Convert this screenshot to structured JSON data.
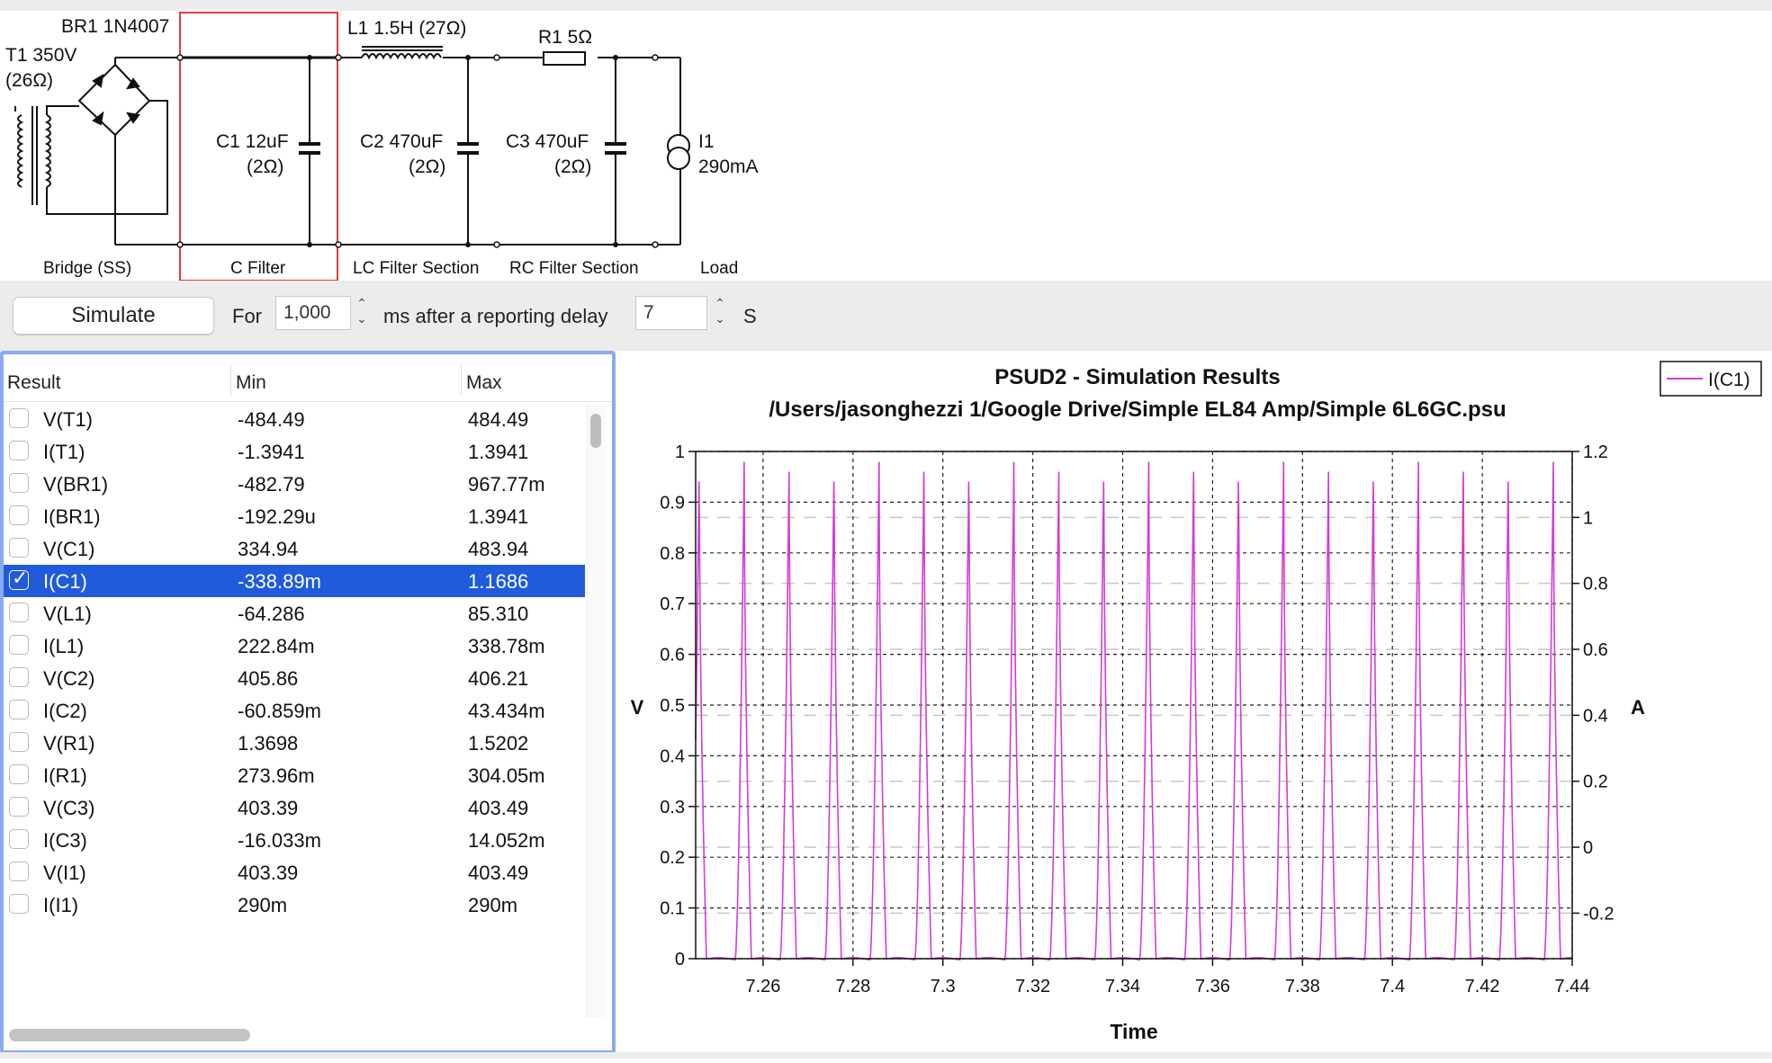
{
  "schematic": {
    "t1_label": "T1 350V",
    "t1_res": "(26Ω)",
    "br1_label": "BR1 1N4007",
    "l1_label": "L1 1.5H (27Ω)",
    "r1_label": "R1 5Ω",
    "c1_label": "C1 12uF",
    "c1_res": "(2Ω)",
    "c2_label": "C2 470uF",
    "c2_res": "(2Ω)",
    "c3_label": "C3 470uF",
    "c3_res": "(2Ω)",
    "i1_label": "I1",
    "i1_value": "290mA",
    "sections": [
      "Bridge (SS)",
      "C Filter",
      "LC Filter Section",
      "RC Filter Section",
      "Load"
    ]
  },
  "toolbar": {
    "simulate_label": "Simulate",
    "for_label": "For",
    "duration_value": "1,000",
    "ms_label": "ms after a reporting delay",
    "delay_value": "7",
    "s_label": "S"
  },
  "results": {
    "headers": [
      "Result",
      "Min",
      "Max"
    ],
    "rows": [
      {
        "name": "V(T1)",
        "min": "-484.49",
        "max": "484.49",
        "selected": false
      },
      {
        "name": "I(T1)",
        "min": "-1.3941",
        "max": "1.3941",
        "selected": false
      },
      {
        "name": "V(BR1)",
        "min": "-482.79",
        "max": "967.77m",
        "selected": false
      },
      {
        "name": "I(BR1)",
        "min": "-192.29u",
        "max": "1.3941",
        "selected": false
      },
      {
        "name": "V(C1)",
        "min": "334.94",
        "max": "483.94",
        "selected": false
      },
      {
        "name": "I(C1)",
        "min": "-338.89m",
        "max": "1.1686",
        "selected": true
      },
      {
        "name": "V(L1)",
        "min": "-64.286",
        "max": "85.310",
        "selected": false
      },
      {
        "name": "I(L1)",
        "min": "222.84m",
        "max": "338.78m",
        "selected": false
      },
      {
        "name": "V(C2)",
        "min": "405.86",
        "max": "406.21",
        "selected": false
      },
      {
        "name": "I(C2)",
        "min": "-60.859m",
        "max": "43.434m",
        "selected": false
      },
      {
        "name": "V(R1)",
        "min": "1.3698",
        "max": "1.5202",
        "selected": false
      },
      {
        "name": "I(R1)",
        "min": "273.96m",
        "max": "304.05m",
        "selected": false
      },
      {
        "name": "V(C3)",
        "min": "403.39",
        "max": "403.49",
        "selected": false
      },
      {
        "name": "I(C3)",
        "min": "-16.033m",
        "max": "14.052m",
        "selected": false
      },
      {
        "name": "V(I1)",
        "min": "403.39",
        "max": "403.49",
        "selected": false
      },
      {
        "name": "I(I1)",
        "min": "290m",
        "max": "290m",
        "selected": false
      }
    ]
  },
  "chart_data": {
    "type": "line",
    "title": "PSUD2 - Simulation Results",
    "subtitle": "/Users/jasonghezzi 1/Google Drive/Simple EL84 Amp/Simple 6L6GC.psu",
    "xlabel": "Time",
    "ylabel_left": "V",
    "ylabel_right": "A",
    "xlim": [
      7.245,
      7.44
    ],
    "ylim_left": [
      0,
      1
    ],
    "ylim_right": [
      -0.338,
      1.2
    ],
    "x_ticks": [
      "7.26",
      "7.28",
      "7.3",
      "7.32",
      "7.34",
      "7.36",
      "7.38",
      "7.4",
      "7.42",
      "7.44"
    ],
    "y_left_ticks": [
      "0",
      "0.1",
      "0.2",
      "0.3",
      "0.4",
      "0.5",
      "0.6",
      "0.7",
      "0.8",
      "0.9",
      "1"
    ],
    "y_right_ticks": [
      "-0.2",
      "0",
      "0.2",
      "0.4",
      "0.6",
      "0.8",
      "1",
      "1.2"
    ],
    "grid": true,
    "legend_position": "top-right",
    "series": [
      {
        "name": "I(C1)",
        "color": "#d43ad8",
        "axis": "right",
        "period": 0.01,
        "first_peak": 7.2458,
        "peak": 1.1686,
        "trough": -0.3389,
        "peak_times": [
          7.2458,
          7.2558,
          7.2658,
          7.2758,
          7.2858,
          7.2958,
          7.3058,
          7.3158,
          7.3258,
          7.3358,
          7.3458,
          7.3558,
          7.3658,
          7.3758,
          7.3858,
          7.3958,
          7.4058,
          7.4158,
          7.4258,
          7.4358
        ]
      }
    ]
  }
}
